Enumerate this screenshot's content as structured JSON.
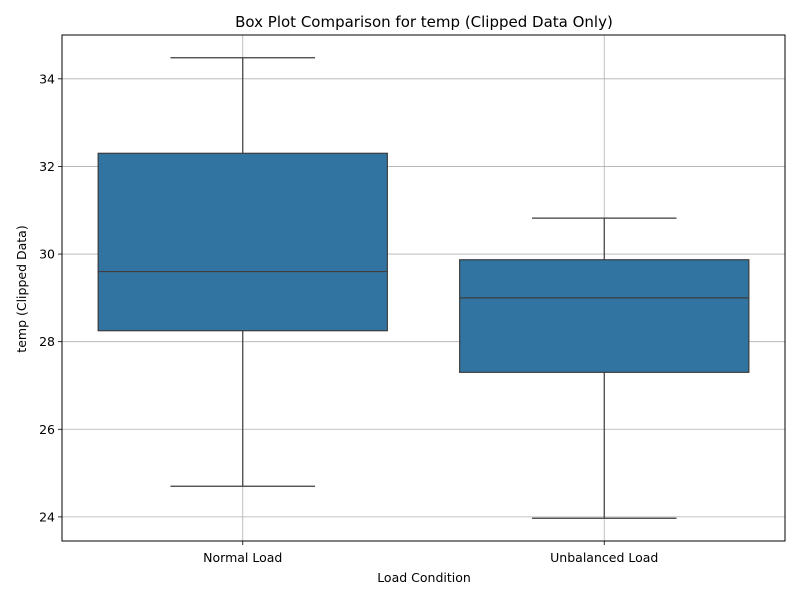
{
  "chart_data": {
    "type": "box",
    "title": "Box Plot Comparison for temp (Clipped Data Only)",
    "xlabel": "Load Condition",
    "ylabel": "temp (Clipped Data)",
    "categories": [
      "Normal Load",
      "Unbalanced Load"
    ],
    "boxes": [
      {
        "category": "Normal Load",
        "whisker_low": 24.7,
        "q1": 28.25,
        "median": 29.6,
        "q3": 32.3,
        "whisker_high": 34.48
      },
      {
        "category": "Unbalanced Load",
        "whisker_low": 23.97,
        "q1": 27.3,
        "median": 29.0,
        "q3": 29.87,
        "whisker_high": 30.82
      }
    ],
    "ylim": [
      23.45,
      35.0
    ],
    "yticks": [
      24,
      26,
      28,
      30,
      32,
      34
    ],
    "grid": true,
    "box_color": "#3274a1",
    "line_color": "#3d3d3d",
    "grid_color": "#b0b0b0"
  }
}
